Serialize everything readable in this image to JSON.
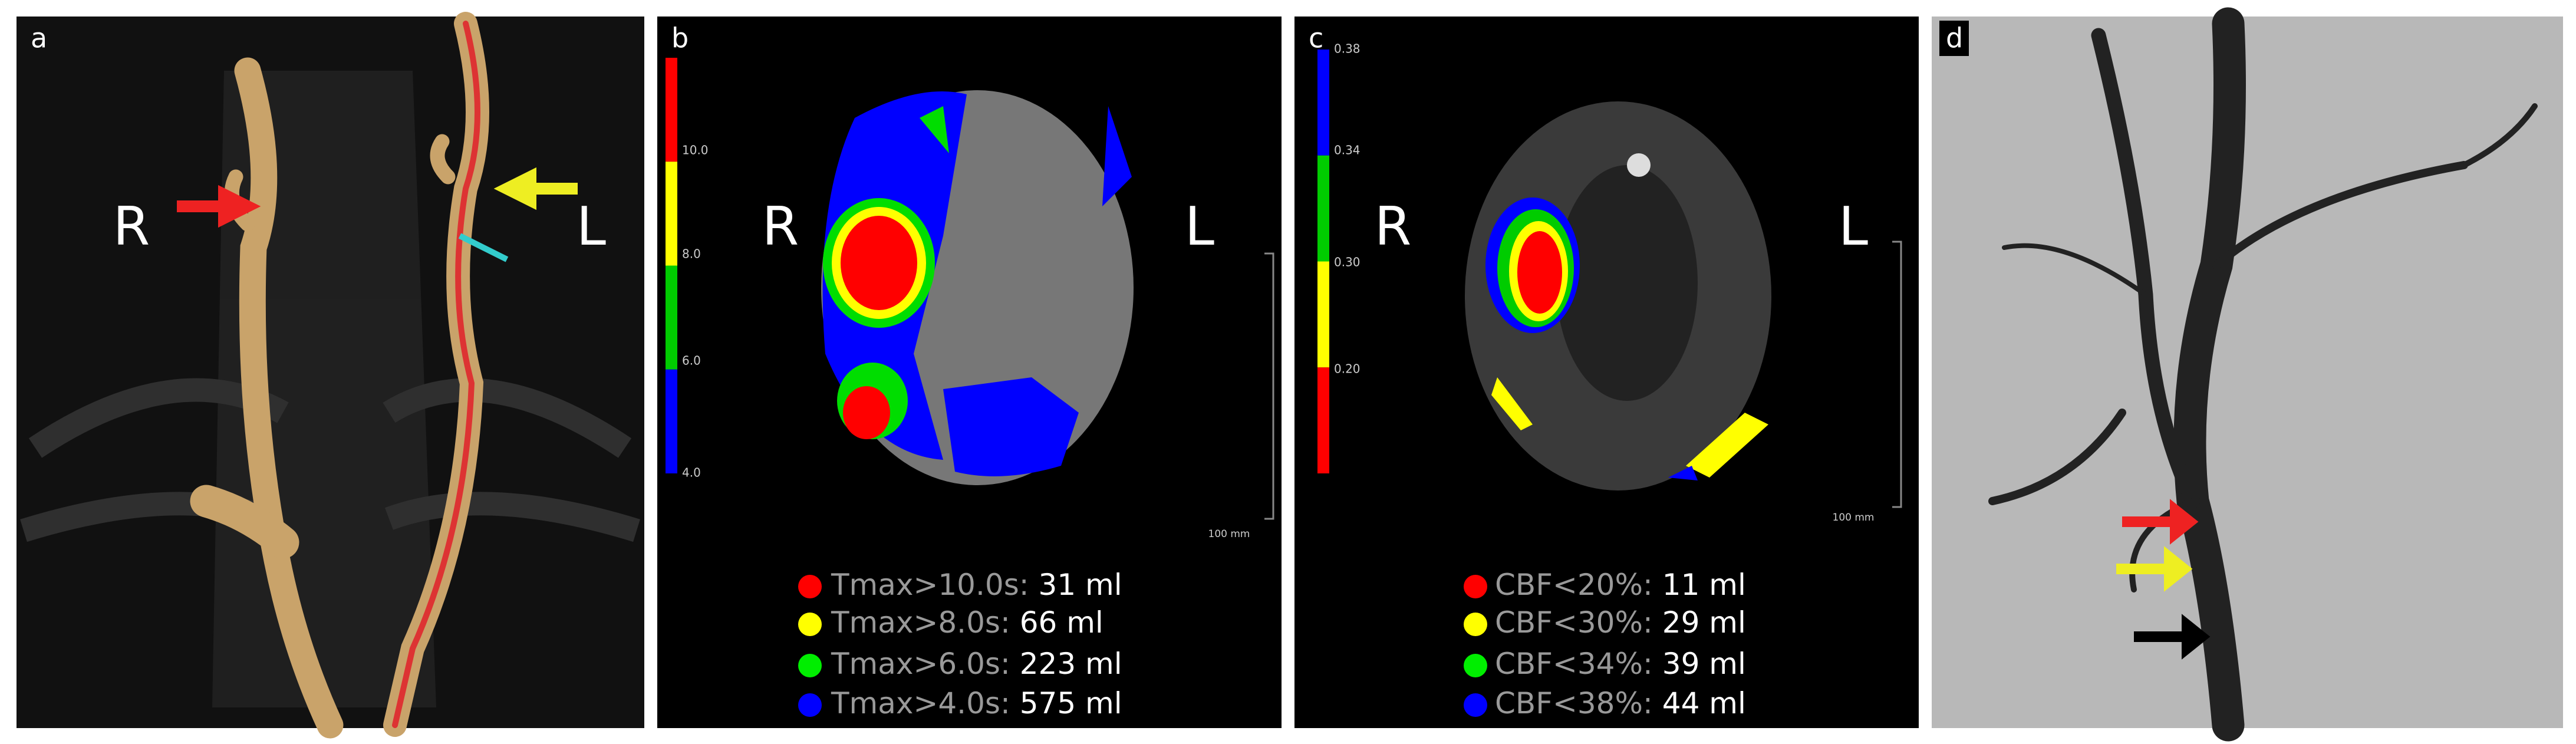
{
  "panels": [
    {
      "letter": "a",
      "left": "R",
      "right": "L"
    },
    {
      "letter": "b",
      "left": "R",
      "right": "L",
      "scale": "100 mm",
      "colorbar": {
        "colors": [
          "#ff0000",
          "#ffff00",
          "#00cc00",
          "#0000ff"
        ],
        "ticks": [
          "10.0",
          "8.0",
          "6.0",
          "4.0"
        ]
      },
      "legend": [
        {
          "color": "#ff0000",
          "label": "Tmax>10.0s:",
          "value": "31 ml"
        },
        {
          "color": "#ffff00",
          "label": "Tmax>8.0s:",
          "value": "66 ml"
        },
        {
          "color": "#00ee00",
          "label": "Tmax>6.0s:",
          "value": "223 ml"
        },
        {
          "color": "#0000ff",
          "label": "Tmax>4.0s:",
          "value": "575 ml"
        }
      ]
    },
    {
      "letter": "c",
      "left": "R",
      "right": "L",
      "scale": "100 mm",
      "colorbar": {
        "colors": [
          "#0000ff",
          "#00cc00",
          "#ffff00",
          "#ff0000"
        ],
        "ticks": [
          "0.38",
          "0.34",
          "0.30",
          "0.20"
        ]
      },
      "legend": [
        {
          "color": "#ff0000",
          "label": "CBF<20%:",
          "value": "11 ml"
        },
        {
          "color": "#ffff00",
          "label": "CBF<30%:",
          "value": "29 ml"
        },
        {
          "color": "#00ee00",
          "label": "CBF<34%:",
          "value": "39 ml"
        },
        {
          "color": "#0000ff",
          "label": "CBF<38%:",
          "value": "44 ml"
        }
      ]
    },
    {
      "letter": "d"
    }
  ]
}
